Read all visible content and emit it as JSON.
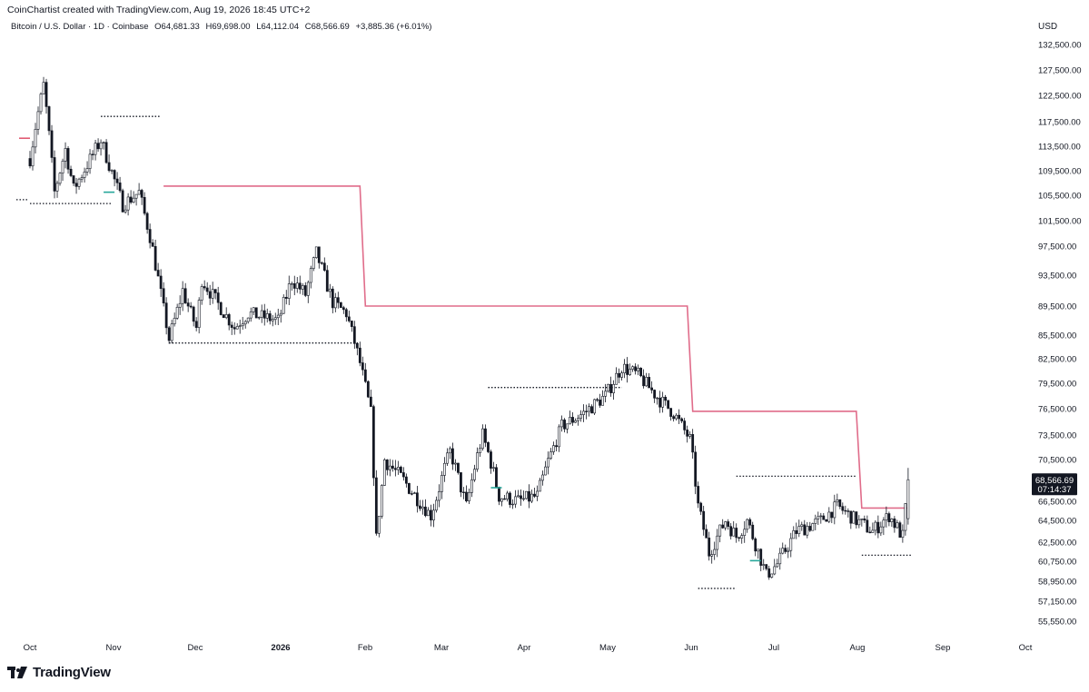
{
  "header": {
    "attribution": "CoinChartist created with TradingView.com, Aug 19, 2026 18:45 UTC+2"
  },
  "symbol": {
    "name": "Bitcoin / U.S. Dollar · 1D · Coinbase",
    "open": "O64,681.33",
    "high": "H69,698.00",
    "low": "L64,112.04",
    "close": "C68,566.69",
    "change": "+3,885.36 (+6.01%)"
  },
  "axis": {
    "currency": "USD"
  },
  "price_badge": {
    "price": "68,566.69",
    "countdown": "07:14:37"
  },
  "logo": {
    "text": "TradingView"
  },
  "colors": {
    "candle": "#131722",
    "trend_line": "#e06c8a",
    "marker_green": "#26a69a",
    "marker_red": "#e05a72",
    "badge_bg": "#131722"
  },
  "chart_data": {
    "type": "candlestick",
    "x_axis_labels": [
      "Oct",
      "Nov",
      "Dec",
      "2026",
      "Feb",
      "Mar",
      "Apr",
      "May",
      "Jun",
      "Jul",
      "Aug",
      "Sep",
      "Oct"
    ],
    "y_axis_labels": [
      "132,500.00",
      "127,500.00",
      "122,500.00",
      "117,500.00",
      "113,500.00",
      "109,500.00",
      "105,500.00",
      "101,500.00",
      "97,500.00",
      "93,500.00",
      "89,500.00",
      "85,500.00",
      "82,500.00",
      "79,500.00",
      "76,500.00",
      "73,500.00",
      "70,500.00",
      "66,500.00",
      "64,500.00",
      "62,500.00",
      "60,750.00",
      "58,950.00",
      "57,150.00",
      "55,550.00"
    ],
    "y_axis_values": [
      132500,
      127500,
      122500,
      117500,
      113500,
      109500,
      105500,
      101500,
      97500,
      93500,
      89500,
      85500,
      82500,
      79500,
      76500,
      73500,
      70500,
      66500,
      64500,
      62500,
      60750,
      58950,
      57150,
      55550
    ],
    "waypoints": [
      [
        "2025-10-01",
        111500
      ],
      [
        "2025-10-06",
        124500
      ],
      [
        "2025-10-10",
        106000
      ],
      [
        "2025-10-14",
        113000
      ],
      [
        "2025-10-17",
        106500
      ],
      [
        "2025-10-27",
        114500
      ],
      [
        "2025-11-04",
        104000
      ],
      [
        "2025-11-10",
        106000
      ],
      [
        "2025-11-14",
        99000
      ],
      [
        "2025-11-21",
        85000
      ],
      [
        "2025-11-26",
        91500
      ],
      [
        "2025-12-01",
        86500
      ],
      [
        "2025-12-03",
        93000
      ],
      [
        "2025-12-15",
        86500
      ],
      [
        "2025-12-20",
        88500
      ],
      [
        "2025-12-31",
        87500
      ],
      [
        "2026-01-05",
        93000
      ],
      [
        "2026-01-10",
        91000
      ],
      [
        "2026-01-14",
        96500
      ],
      [
        "2026-01-20",
        90000
      ],
      [
        "2026-01-25",
        88500
      ],
      [
        "2026-01-30",
        82000
      ],
      [
        "2026-02-03",
        76000
      ],
      [
        "2026-02-05",
        62800
      ],
      [
        "2026-02-08",
        70500
      ],
      [
        "2026-02-15",
        68500
      ],
      [
        "2026-02-25",
        65000
      ],
      [
        "2026-03-04",
        71500
      ],
      [
        "2026-03-10",
        66000
      ],
      [
        "2026-03-16",
        73500
      ],
      [
        "2026-03-22",
        67000
      ],
      [
        "2026-03-29",
        66500
      ],
      [
        "2026-04-05",
        67000
      ],
      [
        "2026-04-14",
        74500
      ],
      [
        "2026-04-22",
        76000
      ],
      [
        "2026-04-30",
        78000
      ],
      [
        "2026-05-06",
        81500
      ],
      [
        "2026-05-12",
        80500
      ],
      [
        "2026-05-20",
        77500
      ],
      [
        "2026-05-25",
        76000
      ],
      [
        "2026-05-31",
        73000
      ],
      [
        "2026-06-03",
        66000
      ],
      [
        "2026-06-07",
        61500
      ],
      [
        "2026-06-13",
        64500
      ],
      [
        "2026-06-17",
        63000
      ],
      [
        "2026-06-21",
        64500
      ],
      [
        "2026-06-28",
        59500
      ],
      [
        "2026-07-02",
        60500
      ],
      [
        "2026-07-09",
        63500
      ],
      [
        "2026-07-18",
        64500
      ],
      [
        "2026-07-24",
        66000
      ],
      [
        "2026-07-31",
        64500
      ],
      [
        "2026-08-06",
        63500
      ],
      [
        "2026-08-12",
        65000
      ],
      [
        "2026-08-17",
        63000
      ],
      [
        "2026-08-19",
        68566.69
      ]
    ],
    "trend_line": [
      [
        "2025-11-19",
        107000
      ],
      [
        "2026-01-30",
        107000
      ],
      [
        "2026-02-01",
        89500
      ],
      [
        "2026-05-30",
        89500
      ],
      [
        "2026-06-01",
        76200
      ],
      [
        "2026-07-31",
        76200
      ],
      [
        "2026-08-02",
        65800
      ],
      [
        "2026-08-19",
        65800
      ]
    ],
    "dotted_levels": [
      {
        "start": "2025-09-26",
        "end": "2025-09-30",
        "price": 104800
      },
      {
        "start": "2025-10-01",
        "end": "2025-10-31",
        "price": 104200
      },
      {
        "start": "2025-10-27",
        "end": "2025-11-18",
        "price": 118500
      },
      {
        "start": "2025-11-21",
        "end": "2026-01-30",
        "price": 84500
      },
      {
        "start": "2026-03-18",
        "end": "2026-05-06",
        "price": 79000
      },
      {
        "start": "2026-06-03",
        "end": "2026-06-17",
        "price": 58300
      },
      {
        "start": "2026-06-17",
        "end": "2026-07-31",
        "price": 68900
      },
      {
        "start": "2026-08-02",
        "end": "2026-08-20",
        "price": 61300
      }
    ],
    "markers": [
      {
        "date": "2025-09-29",
        "price": 114800,
        "color": "red"
      },
      {
        "date": "2025-10-30",
        "price": 106000,
        "color": "green"
      },
      {
        "date": "2026-03-21",
        "price": 67800,
        "color": "green"
      },
      {
        "date": "2026-06-24",
        "price": 60800,
        "color": "green"
      }
    ],
    "last_price": 68566.69
  }
}
